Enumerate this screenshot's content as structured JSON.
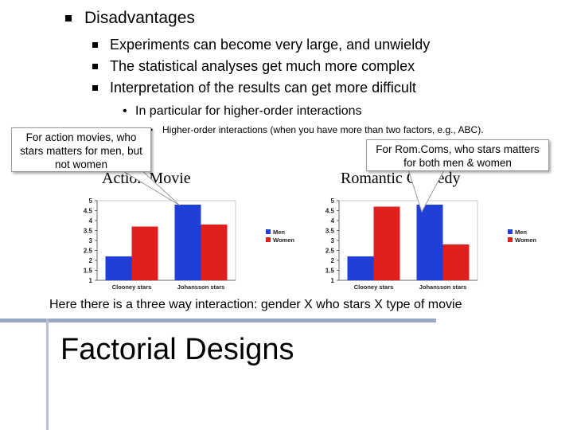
{
  "slide": {
    "heading": "Disadvantages",
    "points": [
      "Experiments can become very large, and unwieldy",
      "The statistical analyses get much more complex",
      "Interpretation of the results can get more difficult"
    ],
    "sub_point": "In particular for higher-order interactions",
    "sub_sub_point": "Higher-order interactions (when you have more than two factors, e.g., ABC).",
    "callout_left": "For action movies, who stars matters for men, but not women",
    "callout_right": "For Rom.Coms, who stars matters for both men & women",
    "caption": "Here there is a three way interaction: gender X who stars X type of movie",
    "footer_title": "Factorial Designs"
  },
  "colors": {
    "men": "#1f3fd6",
    "women": "#e01f1f"
  },
  "chart_data": [
    {
      "type": "bar",
      "title": "Action Movie",
      "categories": [
        "Clooney stars",
        "Johansson stars"
      ],
      "series": [
        {
          "name": "Men",
          "values": [
            2.2,
            4.8
          ]
        },
        {
          "name": "Women",
          "values": [
            3.7,
            3.8
          ]
        }
      ],
      "ylim": [
        1,
        5
      ],
      "yticks": [
        "1",
        "1.5",
        "2",
        "2.5",
        "3",
        "3.5",
        "4",
        "4.5",
        "5"
      ],
      "legend": "right"
    },
    {
      "type": "bar",
      "title": "Romantic Comedy",
      "categories": [
        "Clooney stars",
        "Johansson stars"
      ],
      "series": [
        {
          "name": "Men",
          "values": [
            2.2,
            4.8
          ]
        },
        {
          "name": "Women",
          "values": [
            4.7,
            2.8
          ]
        }
      ],
      "ylim": [
        1,
        5
      ],
      "yticks": [
        "1",
        "1.5",
        "2",
        "2.5",
        "3",
        "3.5",
        "4",
        "4.5",
        "5"
      ],
      "legend": "right"
    }
  ]
}
